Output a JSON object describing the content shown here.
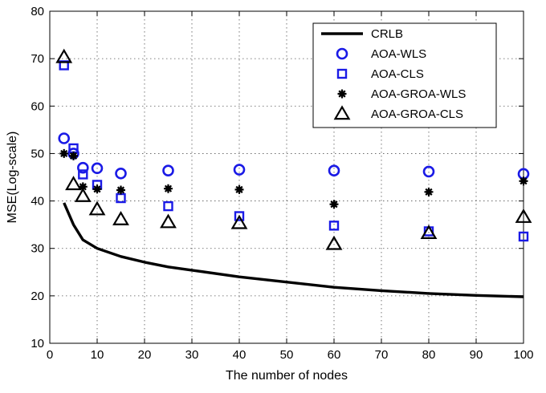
{
  "chart_data": {
    "type": "line",
    "title": "",
    "xlabel": "The number of nodes",
    "ylabel": "MSE(Log-scale)",
    "xlim": [
      0,
      100
    ],
    "ylim": [
      10,
      80
    ],
    "xticks": [
      0,
      10,
      20,
      30,
      40,
      50,
      60,
      70,
      80,
      90,
      100
    ],
    "yticks": [
      10,
      20,
      30,
      40,
      50,
      60,
      70,
      80
    ],
    "grid": true,
    "legend_position": "top-right",
    "series": [
      {
        "name": "CRLB",
        "style": "line",
        "color": "#000000",
        "x": [
          3,
          5,
          7,
          10,
          15,
          20,
          25,
          30,
          40,
          50,
          60,
          70,
          80,
          90,
          100
        ],
        "values": [
          39.6,
          35.0,
          31.8,
          30.0,
          28.3,
          27.1,
          26.1,
          25.4,
          24.0,
          22.9,
          21.8,
          21.1,
          20.5,
          20.1,
          19.8
        ]
      },
      {
        "name": "AOA-WLS",
        "style": "marker",
        "marker": "circle",
        "color": "#1a1ae6",
        "x": [
          3,
          5,
          7,
          10,
          15,
          25,
          40,
          60,
          80,
          100
        ],
        "values": [
          53.2,
          50.0,
          47.0,
          46.9,
          45.8,
          46.4,
          46.6,
          46.4,
          46.2,
          45.7
        ]
      },
      {
        "name": "AOA-CLS",
        "style": "marker",
        "marker": "square",
        "color": "#1a1ae6",
        "x": [
          3,
          5,
          7,
          10,
          15,
          25,
          40,
          60,
          80,
          100
        ],
        "values": [
          68.6,
          51.1,
          45.6,
          43.4,
          40.6,
          38.9,
          36.8,
          34.8,
          33.6,
          32.5
        ]
      },
      {
        "name": "AOA-GROA-WLS",
        "style": "marker",
        "marker": "star",
        "color": "#000000",
        "x": [
          3,
          5,
          7,
          10,
          15,
          25,
          40,
          60,
          80,
          100
        ],
        "values": [
          50.0,
          49.5,
          43.0,
          42.5,
          42.3,
          42.6,
          42.4,
          39.3,
          41.9,
          44.2
        ]
      },
      {
        "name": "AOA-GROA-CLS",
        "style": "marker",
        "marker": "triangle",
        "color": "#000000",
        "x": [
          3,
          5,
          7,
          10,
          15,
          25,
          40,
          60,
          80,
          100
        ],
        "values": [
          70.3,
          43.5,
          41.0,
          38.2,
          36.1,
          35.5,
          35.3,
          30.9,
          33.2,
          36.6
        ]
      }
    ]
  }
}
